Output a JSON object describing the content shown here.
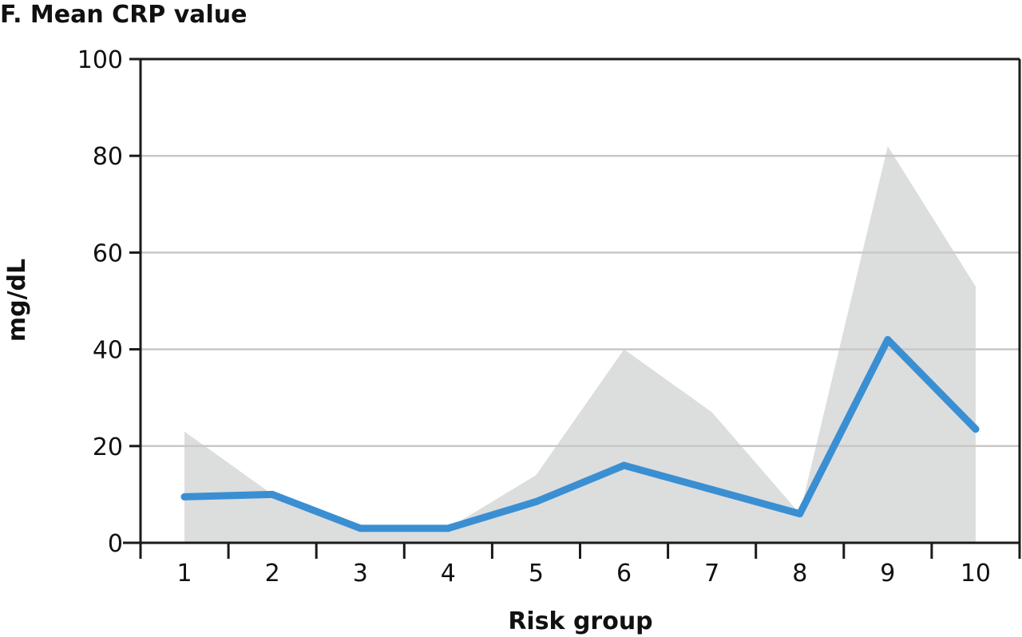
{
  "chart_data": {
    "type": "line",
    "title": "F. Mean CRP value",
    "xlabel": "Risk group",
    "ylabel": "mg/dL",
    "categories": [
      "1",
      "2",
      "3",
      "4",
      "5",
      "6",
      "7",
      "8",
      "9",
      "10"
    ],
    "yticks": [
      "0",
      "20",
      "40",
      "60",
      "80",
      "100"
    ],
    "ylim": [
      0,
      100
    ],
    "grid": true,
    "series": [
      {
        "type": "line",
        "values": [
          9.5,
          10,
          3,
          3,
          8.5,
          16,
          11,
          6,
          42,
          23.5
        ],
        "color": "#3a8fd3"
      },
      {
        "type": "area",
        "values": [
          23,
          10,
          3,
          3,
          14,
          40,
          27,
          6,
          82,
          53
        ],
        "color": "#dcdddd"
      }
    ]
  }
}
